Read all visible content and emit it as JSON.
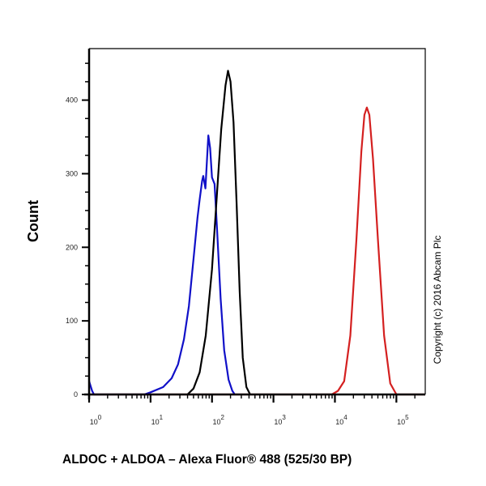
{
  "chart_data": {
    "type": "line",
    "title": "",
    "xlabel": "ALDOC + ALDOA – Alexa Fluor® 488  (525/30 BP)",
    "ylabel": "Count",
    "x_scale": "log",
    "xlim": [
      1,
      295000
    ],
    "ylim": [
      0,
      470
    ],
    "x_ticks": [
      {
        "base": "10",
        "exp": "0",
        "value": 1
      },
      {
        "base": "10",
        "exp": "1",
        "value": 10
      },
      {
        "base": "10",
        "exp": "2",
        "value": 100
      },
      {
        "base": "10",
        "exp": "3",
        "value": 1000
      },
      {
        "base": "10",
        "exp": "4",
        "value": 10000
      },
      {
        "base": "10",
        "exp": "5",
        "value": 100000
      }
    ],
    "y_ticks": [
      "0",
      "100",
      "200",
      "300",
      "400"
    ],
    "grid": false,
    "legend": "none",
    "annotation": "Copyright (c) 2016 Abcam Plc",
    "series": [
      {
        "color": "#1010c8",
        "points": [
          [
            1,
            18
          ],
          [
            1.12,
            5
          ],
          [
            1.2,
            0
          ],
          [
            7.9,
            0
          ],
          [
            10,
            3
          ],
          [
            16,
            10
          ],
          [
            22,
            22
          ],
          [
            28,
            41
          ],
          [
            35,
            75
          ],
          [
            42,
            120
          ],
          [
            51,
            192
          ],
          [
            58,
            240
          ],
          [
            63,
            265
          ],
          [
            69,
            290
          ],
          [
            72,
            297
          ],
          [
            78,
            280
          ],
          [
            83,
            320
          ],
          [
            87,
            352
          ],
          [
            93,
            335
          ],
          [
            100,
            295
          ],
          [
            110,
            286
          ],
          [
            120,
            230
          ],
          [
            138,
            130
          ],
          [
            158,
            60
          ],
          [
            186,
            20
          ],
          [
            214,
            5
          ],
          [
            234,
            0
          ]
        ]
      },
      {
        "color": "#000000",
        "points": [
          [
            40,
            0
          ],
          [
            50,
            8
          ],
          [
            63,
            30
          ],
          [
            79,
            80
          ],
          [
            100,
            170
          ],
          [
            120,
            270
          ],
          [
            141,
            360
          ],
          [
            166,
            420
          ],
          [
            182,
            440
          ],
          [
            200,
            425
          ],
          [
            224,
            370
          ],
          [
            251,
            260
          ],
          [
            282,
            140
          ],
          [
            316,
            50
          ],
          [
            363,
            10
          ],
          [
            417,
            0
          ]
        ]
      },
      {
        "color": "#d42020",
        "points": [
          [
            1,
            0
          ],
          [
            8913,
            0
          ],
          [
            11220,
            5
          ],
          [
            14125,
            18
          ],
          [
            17783,
            80
          ],
          [
            22387,
            210
          ],
          [
            26915,
            330
          ],
          [
            30200,
            380
          ],
          [
            33113,
            390
          ],
          [
            36308,
            380
          ],
          [
            41687,
            320
          ],
          [
            50119,
            210
          ],
          [
            63096,
            80
          ],
          [
            79433,
            15
          ],
          [
            100000,
            0
          ],
          [
            295000,
            0
          ]
        ]
      }
    ]
  }
}
